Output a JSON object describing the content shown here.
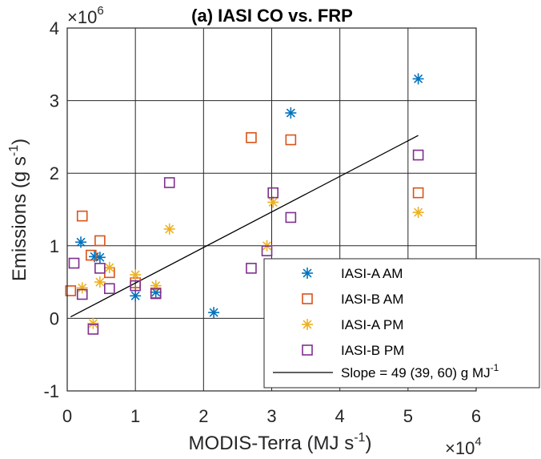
{
  "chart_data": {
    "type": "scatter",
    "title": "(a) IASI CO vs. FRP",
    "xlabel": "MODIS-Terra (MJ s",
    "xlabel_sup": "-1",
    "xlabel_end": ")",
    "ylabel": "Emissions (g s",
    "ylabel_sup": "-1",
    "ylabel_end": ")",
    "x_multiplier_base": "×10",
    "x_multiplier_exp": "4",
    "y_multiplier_base": "×10",
    "y_multiplier_exp": "6",
    "xlim": [
      0,
      6
    ],
    "ylim": [
      -1,
      4
    ],
    "xticks": [
      0,
      1,
      2,
      3,
      4,
      5,
      6
    ],
    "yticks": [
      -1,
      0,
      1,
      2,
      3,
      4
    ],
    "xtick_labels": [
      "0",
      "1",
      "2",
      "3",
      "4",
      "5",
      "6"
    ],
    "ytick_labels": [
      "-1",
      "0",
      "1",
      "2",
      "3",
      "4"
    ],
    "grid": true,
    "legend_position": "bottom-right",
    "series": [
      {
        "name": "IASI-A AM",
        "marker": "asterisk",
        "color": "#0072BD",
        "points": [
          [
            0.2,
            1.05
          ],
          [
            0.4,
            0.85
          ],
          [
            0.48,
            0.84
          ],
          [
            1.0,
            0.31
          ],
          [
            1.3,
            0.36
          ],
          [
            2.15,
            0.08
          ],
          [
            3.28,
            2.83
          ],
          [
            5.15,
            3.3
          ]
        ]
      },
      {
        "name": "IASI-B AM",
        "marker": "square",
        "color": "#D95319",
        "points": [
          [
            0.05,
            0.38
          ],
          [
            0.22,
            1.41
          ],
          [
            0.35,
            0.87
          ],
          [
            0.48,
            1.07
          ],
          [
            0.62,
            0.63
          ],
          [
            1.0,
            0.49
          ],
          [
            1.3,
            0.35
          ],
          [
            2.7,
            2.49
          ],
          [
            3.28,
            2.46
          ],
          [
            5.15,
            1.73
          ]
        ]
      },
      {
        "name": "IASI-A PM",
        "marker": "asterisk",
        "color": "#EDB120",
        "points": [
          [
            0.22,
            0.42
          ],
          [
            0.38,
            -0.07
          ],
          [
            0.48,
            0.5
          ],
          [
            0.62,
            0.7
          ],
          [
            1.0,
            0.6
          ],
          [
            1.3,
            0.45
          ],
          [
            1.5,
            1.23
          ],
          [
            2.93,
            1.0
          ],
          [
            3.02,
            1.6
          ],
          [
            5.15,
            1.46
          ]
        ]
      },
      {
        "name": "IASI-B PM",
        "marker": "square",
        "color": "#7E2F8E",
        "points": [
          [
            0.1,
            0.76
          ],
          [
            0.22,
            0.33
          ],
          [
            0.38,
            -0.15
          ],
          [
            0.48,
            0.69
          ],
          [
            0.62,
            0.41
          ],
          [
            1.0,
            0.45
          ],
          [
            1.3,
            0.34
          ],
          [
            1.5,
            1.87
          ],
          [
            2.7,
            0.69
          ],
          [
            2.93,
            0.93
          ],
          [
            3.02,
            1.73
          ],
          [
            3.28,
            1.39
          ],
          [
            5.15,
            2.25
          ]
        ]
      }
    ],
    "fit_line": {
      "name": "Slope = 49 (39, 60) g MJ",
      "name_sup": "-1",
      "color": "#000000",
      "x": [
        0.05,
        5.15
      ],
      "y": [
        0.02,
        2.52
      ]
    }
  }
}
